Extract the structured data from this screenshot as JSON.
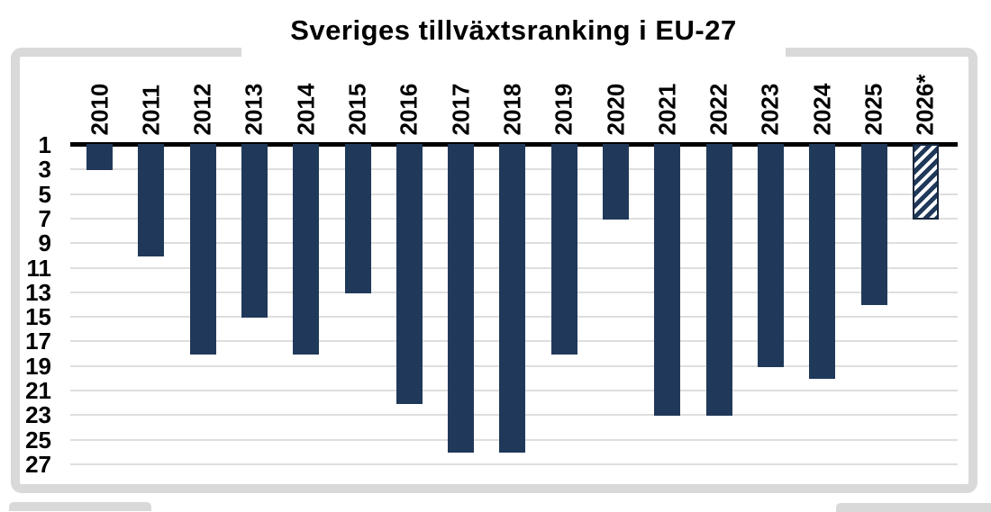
{
  "chart_data": {
    "type": "bar",
    "title": "Sveriges tillväxtsranking i EU-27",
    "categories": [
      "2010",
      "2011",
      "2012",
      "2013",
      "2014",
      "2015",
      "2016",
      "2017",
      "2018",
      "2019",
      "2020",
      "2021",
      "2022",
      "2023",
      "2024",
      "2025",
      "2026*"
    ],
    "values": [
      3,
      10,
      18,
      15,
      18,
      13,
      22,
      26,
      26,
      18,
      7,
      23,
      23,
      19,
      20,
      14,
      7
    ],
    "hatched_categories": [
      "2026*"
    ],
    "xlabel": "",
    "ylabel": "",
    "x_axis_position": "top",
    "y_axis": {
      "inverted": true,
      "range": [
        1,
        27
      ],
      "ticks": [
        1,
        3,
        5,
        7,
        9,
        11,
        13,
        15,
        17,
        19,
        21,
        23,
        25,
        27
      ]
    },
    "grid": true,
    "legend": "none",
    "colors": {
      "bar": "#20395a",
      "hatch_border": "#16263d",
      "axis_line": "#000000",
      "gridline": "#dedede",
      "frame_border": "#d9d9d9",
      "background": "#ffffff",
      "text": "#000000"
    }
  }
}
